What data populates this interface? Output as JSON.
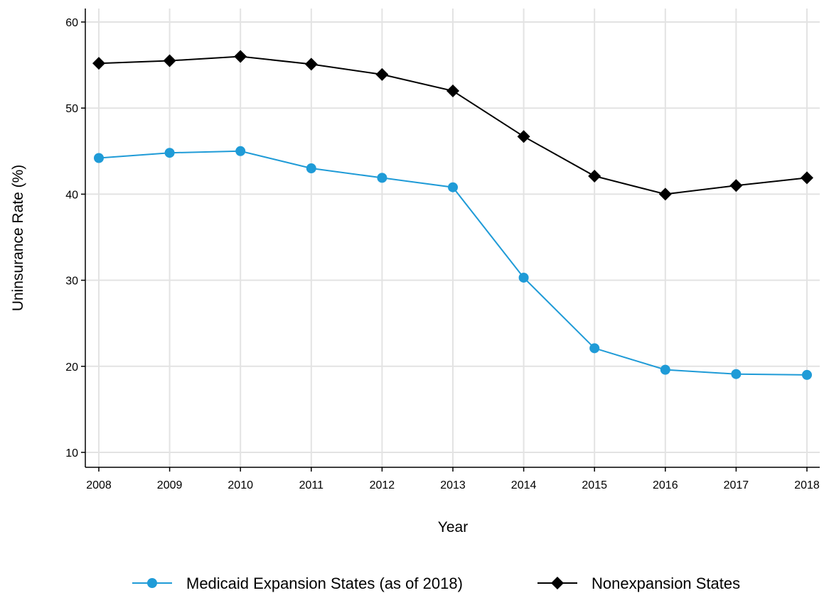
{
  "chart_data": {
    "type": "line",
    "title": "",
    "xlabel": "Year",
    "ylabel": "Uninsurance Rate (%)",
    "x": [
      2008,
      2009,
      2010,
      2011,
      2012,
      2013,
      2014,
      2015,
      2016,
      2017,
      2018
    ],
    "xlim": [
      2008,
      2018
    ],
    "ylim": [
      10,
      60
    ],
    "yticks": [
      10,
      20,
      30,
      40,
      50,
      60
    ],
    "grid": true,
    "legend_position": "bottom",
    "series": [
      {
        "name": "Medicaid Expansion States (as of 2018)",
        "color": "#1f9bd7",
        "marker": "circle",
        "values": [
          44.2,
          44.8,
          45.0,
          43.0,
          41.9,
          40.8,
          30.3,
          22.1,
          19.6,
          19.1,
          19.0
        ]
      },
      {
        "name": "Nonexpansion States",
        "color": "#000000",
        "marker": "diamond",
        "values": [
          55.2,
          55.5,
          56.0,
          55.1,
          53.9,
          52.0,
          46.7,
          42.1,
          40.0,
          41.0,
          41.9
        ]
      }
    ]
  }
}
